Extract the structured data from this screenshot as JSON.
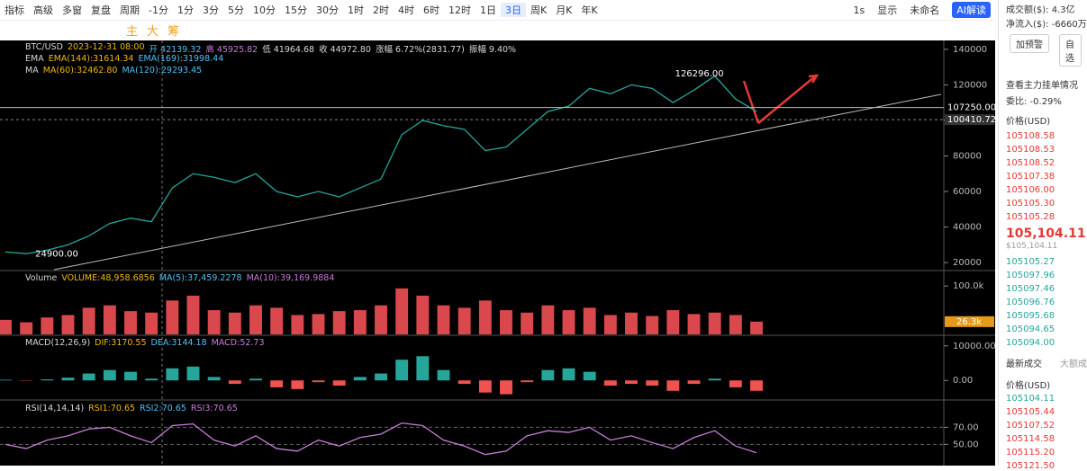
{
  "toolbar": {
    "row1": [
      "指标",
      "高级",
      "多窗",
      "复盘",
      "周期",
      "-1分",
      "1分",
      "3分",
      "5分",
      "10分",
      "15分",
      "30分",
      "1时",
      "2时",
      "4时",
      "6时",
      "12时",
      "1日",
      "3日",
      "周K",
      "月K",
      "年K"
    ],
    "active_index": 18,
    "right": [
      "1s",
      "显示",
      "未命名",
      "AI解读"
    ],
    "row2": [
      "主",
      "大",
      "筹"
    ]
  },
  "chart_data": [
    {
      "type": "line",
      "color": "#26a69a",
      "legend_rows": [
        [
          "BTC/USD",
          "2023-12-31 08:00",
          "开 42139.32",
          "高 45925.82",
          "低 41964.68",
          "收 44972.80",
          "涨幅 6.72%(2831.77)",
          "振幅 9.40%"
        ],
        [
          "EMA",
          "EMA(144):31614.34",
          "EMA(169):31998.44"
        ],
        [
          "MA",
          "MA(60):32462.80",
          "MA(120):29293.45"
        ]
      ],
      "values": [
        26000,
        25000,
        27000,
        30000,
        35000,
        42000,
        45000,
        43000,
        62000,
        70000,
        68000,
        65000,
        70000,
        60000,
        57000,
        60000,
        57000,
        62000,
        67000,
        92000,
        100000,
        97000,
        95000,
        83000,
        85000,
        95000,
        105000,
        108000,
        118000,
        115000,
        120000,
        118000,
        110000,
        117000,
        125000,
        112000,
        105000
      ],
      "ylim": [
        16000,
        145000
      ],
      "yticks": [
        20000,
        40000,
        60000,
        80000,
        100000,
        120000,
        140000
      ],
      "annotations": [
        {
          "text": "126296.00",
          "value": 126296
        },
        {
          "text": "24900.00",
          "value": 24900
        }
      ],
      "price_lines": [
        {
          "value": 107250,
          "label": "107250.00"
        },
        {
          "value": 100410.72,
          "label": "100410.72"
        }
      ]
    },
    {
      "type": "bar",
      "color": "#d9484c",
      "legend_rows": [
        [
          "Volume",
          "VOLUME:48,958.6856",
          "MA(5):37,459.2278",
          "MA(10):39,169.9884"
        ]
      ],
      "values": [
        30000,
        25000,
        35000,
        40000,
        55000,
        60000,
        48000,
        45000,
        70000,
        80000,
        50000,
        45000,
        60000,
        55000,
        40000,
        42000,
        48000,
        50000,
        60000,
        95000,
        80000,
        60000,
        55000,
        70000,
        50000,
        45000,
        60000,
        50000,
        55000,
        40000,
        45000,
        38000,
        50000,
        42000,
        45000,
        40000,
        26300
      ],
      "ylim": [
        0,
        130000
      ],
      "yticks": [
        {
          "value": 100000,
          "label": "100.0k"
        }
      ],
      "current": {
        "value": 26300,
        "label": "26.3k"
      }
    },
    {
      "type": "bar",
      "up_color": "#26a69a",
      "down_color": "#ef5350",
      "legend_rows": [
        [
          "MACD(12,26,9)",
          "DIF:3170.55",
          "DEA:3144.18",
          "MACD:52.73"
        ]
      ],
      "values": [
        200,
        -100,
        300,
        800,
        2000,
        3000,
        2500,
        500,
        3500,
        4000,
        1000,
        -1000,
        500,
        -2000,
        -2500,
        -500,
        -1500,
        1000,
        2000,
        6000,
        7000,
        3000,
        -1000,
        -3500,
        -4000,
        -500,
        3000,
        3500,
        2500,
        -1500,
        -1000,
        -1500,
        -3000,
        -1000,
        500,
        -2000,
        -3000
      ],
      "ylim": [
        -5400,
        12800
      ],
      "yticks": [
        {
          "value": 0,
          "label": "0.00"
        },
        {
          "value": 10000,
          "label": "10000.00"
        }
      ]
    },
    {
      "type": "line",
      "color": "#c77dd8",
      "legend_rows": [
        [
          "RSI(14,14,14)",
          "RSI1:70.65",
          "RSI2:70.65",
          "RSI3:70.65"
        ]
      ],
      "values": [
        50,
        45,
        55,
        60,
        68,
        70,
        60,
        52,
        72,
        74,
        55,
        48,
        60,
        45,
        42,
        55,
        48,
        58,
        62,
        75,
        72,
        55,
        48,
        38,
        42,
        60,
        66,
        64,
        70,
        55,
        60,
        52,
        45,
        58,
        66,
        48,
        40
      ],
      "ylim": [
        25,
        100
      ],
      "yticks": [
        {
          "value": 50,
          "label": "50.00"
        },
        {
          "value": 70,
          "label": "70.00"
        }
      ]
    }
  ],
  "sidebar": {
    "stats": [
      "成交额($): 4.3亿",
      "净流入($): -6660万"
    ],
    "buttons": [
      "加预警",
      "自选"
    ],
    "order_book": {
      "title": "查看主力挂单情况",
      "ratio": "委比: -0.29%",
      "header": "价格(USD)",
      "asks": [
        "105108.58",
        "105108.53",
        "105108.52",
        "105107.38",
        "105106.00",
        "105105.30",
        "105105.28"
      ],
      "last": "105,104.11",
      "last_usd": "$105,104.11",
      "bids": [
        "105105.27",
        "105097.96",
        "105097.46",
        "105096.76",
        "105095.68",
        "105094.65",
        "105094.00"
      ]
    },
    "trades": {
      "tabs": [
        "最新成交",
        "大额成"
      ],
      "header": "价格(USD)",
      "prices": [
        "105104.11",
        "105105.44",
        "105107.52",
        "105114.58",
        "105115.20",
        "105121.50"
      ]
    }
  }
}
